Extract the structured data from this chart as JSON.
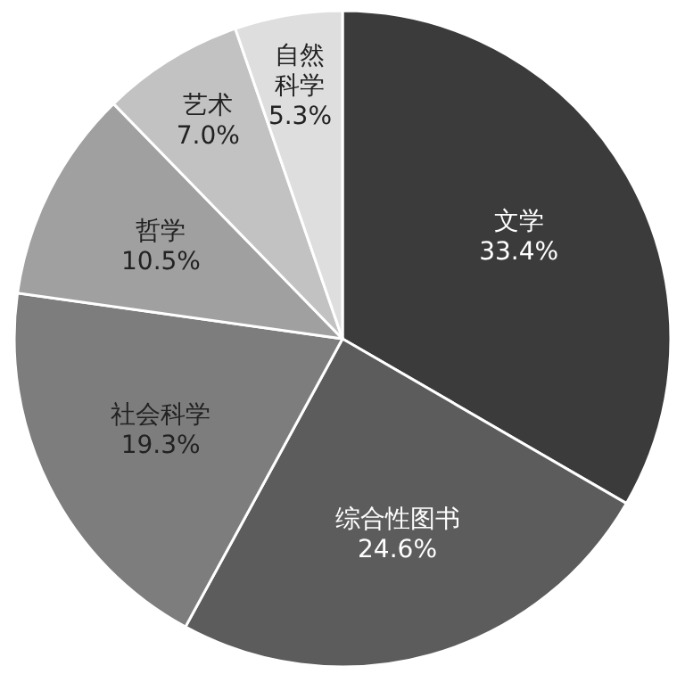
{
  "chart_data": {
    "type": "pie",
    "categories": [
      "文学",
      "综合性图书",
      "社会科学",
      "哲学",
      "艺术",
      "自然科学"
    ],
    "values": [
      33.4,
      24.6,
      19.3,
      10.5,
      7.0,
      5.3
    ],
    "value_labels": [
      "33.4%",
      "24.6%",
      "19.3%",
      "10.5%",
      "7.0%",
      "5.3%"
    ],
    "colors": [
      "#3b3b3b",
      "#5c5c5c",
      "#7d7d7d",
      "#a0a0a0",
      "#c2c2c2",
      "#dedede"
    ]
  }
}
